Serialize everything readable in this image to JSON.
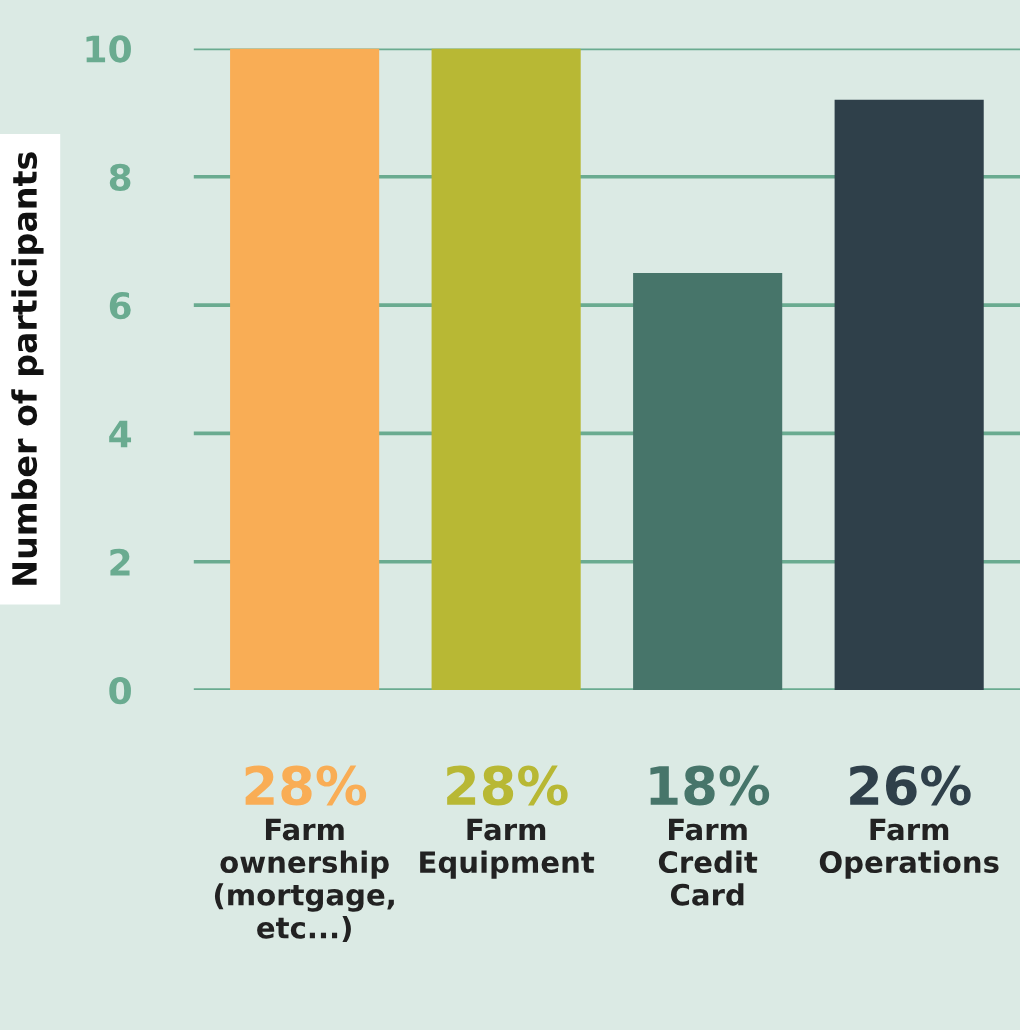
{
  "chart_data": {
    "type": "bar",
    "ylabel": "Number of participants",
    "categories": [
      "Farm\nownership\n(mortgage,\netc...)",
      "Farm\nEquipment",
      "Farm\nCredit\nCard",
      "Farm\nOperations"
    ],
    "values": [
      10,
      10,
      6.5,
      9.2
    ],
    "colors": [
      "#f9ad55",
      "#b8b834",
      "#47756a",
      "#2f404a"
    ],
    "ylim": [
      0,
      10
    ],
    "yticks": [
      0,
      2,
      4,
      6,
      8,
      10
    ],
    "grid": "y",
    "annotations": [
      "28%",
      "28%",
      "18%",
      "26%"
    ]
  }
}
